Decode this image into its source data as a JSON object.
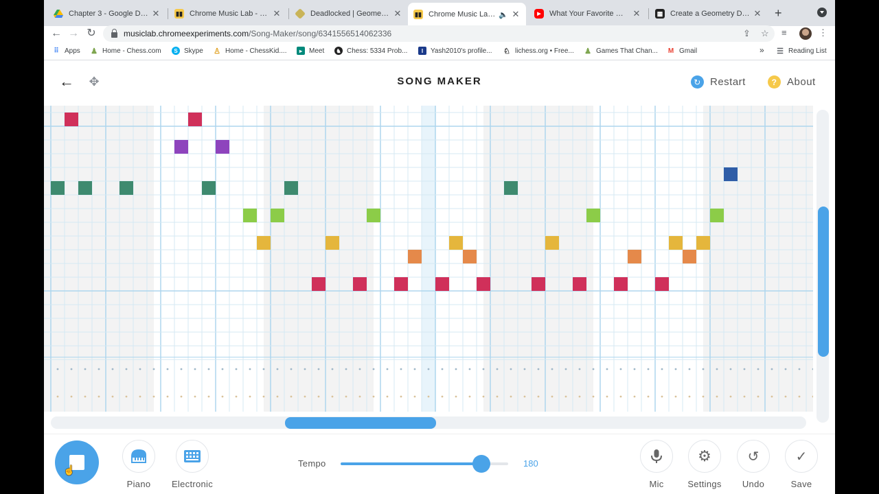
{
  "browser": {
    "tabs": [
      {
        "title": "Chapter 3 - Google Drive",
        "icon": "google-drive-icon",
        "color": "#34a853"
      },
      {
        "title": "Chrome Music Lab - Song M",
        "icon": "music-lab-icon",
        "color": "#f6c94a"
      },
      {
        "title": "Deadlocked | Geometry Da",
        "icon": "geometry-dash-icon",
        "color": "#c9b458"
      },
      {
        "title": "Chrome Music Lab - So",
        "icon": "music-lab-icon",
        "color": "#f6c94a",
        "active": true,
        "audio": true
      },
      {
        "title": "What Your Favorite Geomet",
        "icon": "youtube-icon",
        "color": "#ff0000"
      },
      {
        "title": "Create a Geometry Dash (C",
        "icon": "create-icon",
        "color": "#222222"
      }
    ],
    "url_host": "musiclab.chromeexperiments.com",
    "url_path": "/Song-Maker/song/6341556514062336",
    "bookmarks": [
      {
        "label": "Apps",
        "icon": "apps-grid-icon"
      },
      {
        "label": "Home - Chess.com",
        "icon": "chess-pawn-icon"
      },
      {
        "label": "Skype",
        "icon": "skype-icon"
      },
      {
        "label": "Home - ChessKid....",
        "icon": "chesskid-icon"
      },
      {
        "label": "Meet",
        "icon": "meet-icon"
      },
      {
        "label": "Chess: 5334 Prob...",
        "icon": "chess-icon"
      },
      {
        "label": "Yash2010's profile...",
        "icon": "profile-icon"
      },
      {
        "label": "lichess.org • Free...",
        "icon": "lichess-icon"
      },
      {
        "label": "Games That Chan...",
        "icon": "chess-pawn-icon"
      },
      {
        "label": "Gmail",
        "icon": "gmail-icon"
      }
    ],
    "overflow": "»",
    "reading_list": "Reading List"
  },
  "header": {
    "title": "SONG MAKER",
    "restart_label": "Restart",
    "about_label": "About",
    "about_icon_glyph": "?"
  },
  "grid": {
    "columns": 56,
    "rows": 18,
    "highlight_column": 27,
    "percussion_rows": 2,
    "notes": [
      {
        "col": 1,
        "row": 0,
        "color": "#d0305a"
      },
      {
        "col": 10,
        "row": 0,
        "color": "#d0305a"
      },
      {
        "col": 9,
        "row": 2,
        "color": "#8e44bd"
      },
      {
        "col": 12,
        "row": 2,
        "color": "#8e44bd"
      },
      {
        "col": 49,
        "row": 4,
        "color": "#2f5da7"
      },
      {
        "col": 0,
        "row": 5,
        "color": "#3e8a6f"
      },
      {
        "col": 2,
        "row": 5,
        "color": "#3e8a6f"
      },
      {
        "col": 5,
        "row": 5,
        "color": "#3e8a6f"
      },
      {
        "col": 11,
        "row": 5,
        "color": "#3e8a6f"
      },
      {
        "col": 17,
        "row": 5,
        "color": "#3e8a6f"
      },
      {
        "col": 33,
        "row": 5,
        "color": "#3e8a6f"
      },
      {
        "col": 14,
        "row": 7,
        "color": "#8ccc48"
      },
      {
        "col": 16,
        "row": 7,
        "color": "#8ccc48"
      },
      {
        "col": 23,
        "row": 7,
        "color": "#8ccc48"
      },
      {
        "col": 39,
        "row": 7,
        "color": "#8ccc48"
      },
      {
        "col": 48,
        "row": 7,
        "color": "#8ccc48"
      },
      {
        "col": 15,
        "row": 9,
        "color": "#e5b63c"
      },
      {
        "col": 20,
        "row": 9,
        "color": "#e5b63c"
      },
      {
        "col": 29,
        "row": 9,
        "color": "#e5b63c"
      },
      {
        "col": 36,
        "row": 9,
        "color": "#e5b63c"
      },
      {
        "col": 45,
        "row": 9,
        "color": "#e5b63c"
      },
      {
        "col": 47,
        "row": 9,
        "color": "#e5b63c"
      },
      {
        "col": 26,
        "row": 10,
        "color": "#e5894a"
      },
      {
        "col": 30,
        "row": 10,
        "color": "#e5894a"
      },
      {
        "col": 42,
        "row": 10,
        "color": "#e5894a"
      },
      {
        "col": 46,
        "row": 10,
        "color": "#e5894a"
      },
      {
        "col": 19,
        "row": 12,
        "color": "#d0305a"
      },
      {
        "col": 22,
        "row": 12,
        "color": "#d0305a"
      },
      {
        "col": 25,
        "row": 12,
        "color": "#d0305a"
      },
      {
        "col": 28,
        "row": 12,
        "color": "#d0305a"
      },
      {
        "col": 31,
        "row": 12,
        "color": "#d0305a"
      },
      {
        "col": 35,
        "row": 12,
        "color": "#d0305a"
      },
      {
        "col": 38,
        "row": 12,
        "color": "#d0305a"
      },
      {
        "col": 41,
        "row": 12,
        "color": "#d0305a"
      },
      {
        "col": 44,
        "row": 12,
        "color": "#d0305a"
      }
    ]
  },
  "scroll": {
    "vertical_start_fraction": 0.31,
    "vertical_size_fraction": 0.48,
    "horizontal_start_fraction": 0.31,
    "horizontal_size_fraction": 0.2
  },
  "controls": {
    "piano_label": "Piano",
    "electronic_label": "Electronic",
    "tempo_label": "Tempo",
    "tempo_value": "180",
    "tempo_fraction": 0.84,
    "mic_label": "Mic",
    "settings_label": "Settings",
    "undo_label": "Undo",
    "save_label": "Save"
  },
  "colors": {
    "accent": "#4aa3e8",
    "grid_line": "#d5e8f3",
    "grid_major": "#aed6ee",
    "shade": "#f3f3f3",
    "highlight": "#e8f4fb"
  }
}
